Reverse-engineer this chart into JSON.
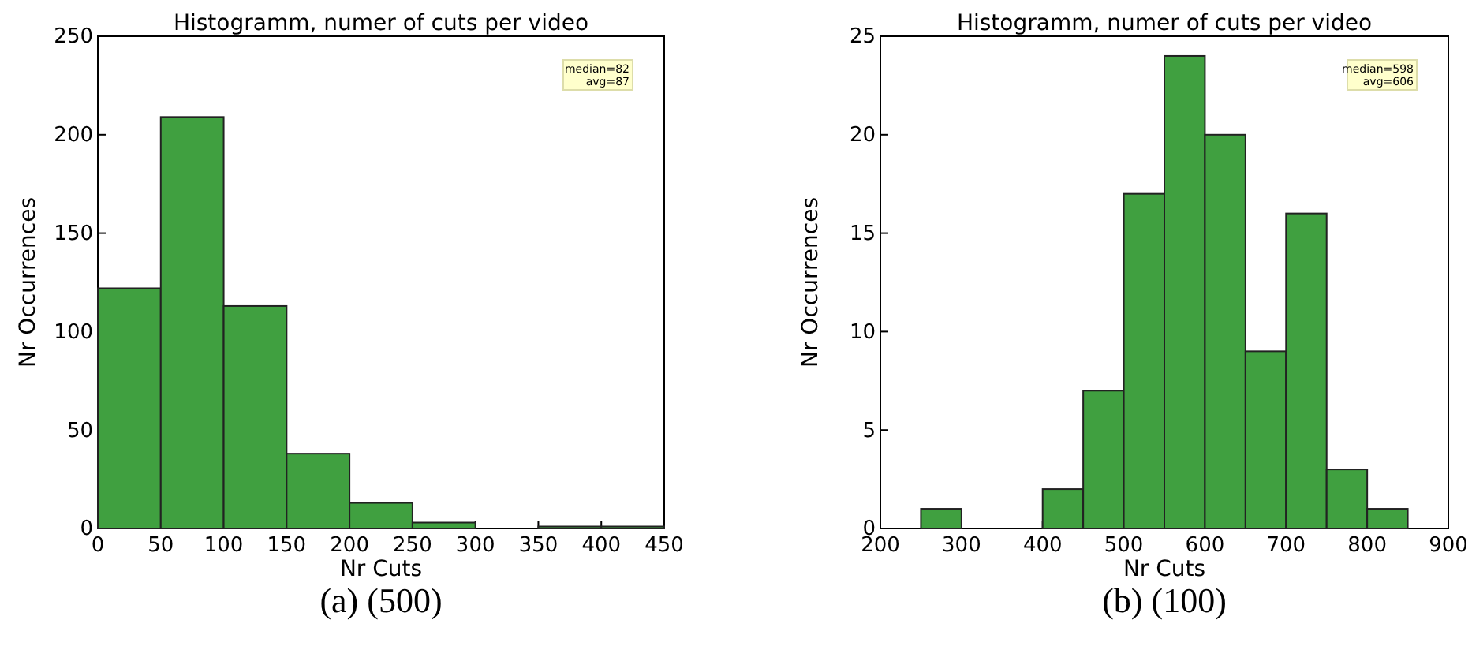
{
  "chart_data": [
    {
      "type": "histogram",
      "title": "Histogramm, numer of cuts per video",
      "xlabel": "Nr Cuts",
      "ylabel": "Nr Occurrences",
      "bins": [
        0,
        50,
        100,
        150,
        200,
        250,
        300,
        350,
        400,
        450
      ],
      "values": [
        122,
        209,
        113,
        38,
        13,
        3,
        0,
        1,
        1
      ],
      "color": "#40a040",
      "xlim": [
        0,
        450
      ],
      "xticks": [
        0,
        50,
        100,
        150,
        200,
        250,
        300,
        350,
        400,
        450
      ],
      "ylim": [
        0,
        250
      ],
      "yticks": [
        0,
        50,
        100,
        150,
        200,
        250
      ],
      "annotations": [
        "median=82\navg=87",
        "(a) (500)"
      ]
    },
    {
      "type": "histogram",
      "title": "Histogramm, numer of cuts per video",
      "xlabel": "Nr Cuts",
      "ylabel": "Nr Occurrences",
      "bins": [
        250,
        300,
        350,
        400,
        450,
        500,
        550,
        600,
        650,
        700,
        750,
        800,
        850
      ],
      "values": [
        1,
        0,
        0,
        2,
        7,
        17,
        24,
        20,
        9,
        16,
        3,
        1
      ],
      "color": "#40a040",
      "xlim": [
        200,
        900
      ],
      "xticks": [
        200,
        300,
        400,
        500,
        600,
        700,
        800,
        900
      ],
      "ylim": [
        0,
        25
      ],
      "yticks": [
        0,
        5,
        10,
        15,
        20,
        25
      ],
      "annotations": [
        "median=598\navg=606",
        "(b) (100)"
      ]
    }
  ]
}
